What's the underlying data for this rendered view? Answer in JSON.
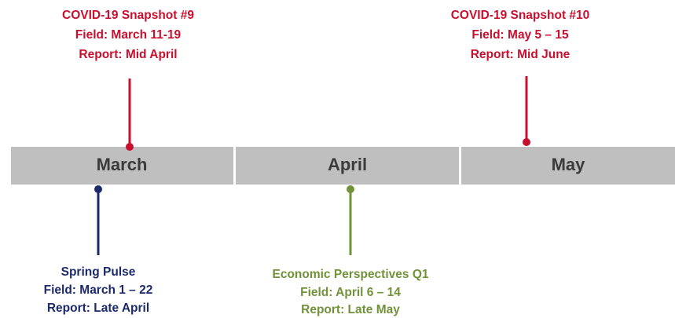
{
  "months": [
    "March",
    "April",
    "May"
  ],
  "events": [
    {
      "lines": [
        "COVID-19 Snapshot #9",
        "Field: March 11-19",
        "Report: Mid April"
      ]
    },
    {
      "lines": [
        "COVID-19 Snapshot #10",
        "Field: May 5 – 15",
        "Report: Mid June"
      ]
    },
    {
      "lines": [
        "Spring Pulse",
        "Field: March 1 – 22",
        "Report: Late April"
      ]
    },
    {
      "lines": [
        "Economic Perspectives Q1",
        "Field: April 6 – 14",
        "Report: Late May"
      ]
    }
  ]
}
